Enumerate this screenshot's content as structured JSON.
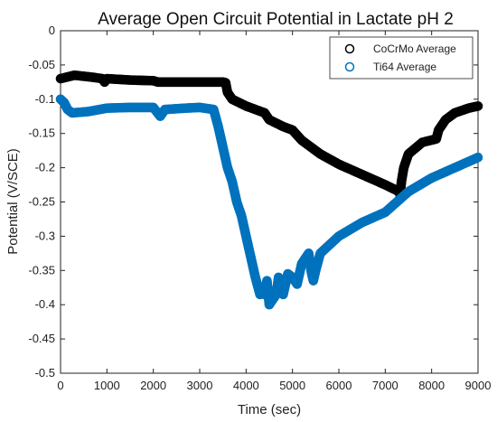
{
  "chart_data": {
    "type": "scatter",
    "title": "Average Open Circuit Potential in Lactate pH 2",
    "xlabel": "Time (sec)",
    "ylabel": "Potential (V/SCE)",
    "xlim": [
      0,
      9000
    ],
    "ylim": [
      -0.5,
      0
    ],
    "xticks": [
      0,
      1000,
      2000,
      3000,
      4000,
      5000,
      6000,
      7000,
      8000,
      9000
    ],
    "yticks": [
      0,
      -0.05,
      -0.1,
      -0.15,
      -0.2,
      -0.25,
      -0.3,
      -0.35,
      -0.4,
      -0.45,
      -0.5
    ],
    "xtick_labels": [
      "0",
      "1000",
      "2000",
      "3000",
      "4000",
      "5000",
      "6000",
      "7000",
      "8000",
      "9000"
    ],
    "ytick_labels": [
      "0",
      "-0.05",
      "-0.1",
      "-0.15",
      "-0.2",
      "-0.25",
      "-0.3",
      "-0.35",
      "-0.4",
      "-0.45",
      "-0.5"
    ],
    "grid": false,
    "legend_position": "top-right",
    "series": [
      {
        "name": "CoCrMo Average",
        "color": "#000000",
        "x": [
          0,
          300,
          700,
          900,
          950,
          1000,
          1500,
          2000,
          2100,
          2500,
          3000,
          3500,
          3560,
          3600,
          3700,
          4000,
          4400,
          4500,
          4800,
          5000,
          5200,
          5600,
          6000,
          6500,
          7000,
          7300,
          7320,
          7350,
          7400,
          7500,
          7800,
          8100,
          8150,
          8300,
          8500,
          8800,
          9000
        ],
        "y": [
          -0.07,
          -0.065,
          -0.068,
          -0.07,
          -0.075,
          -0.07,
          -0.072,
          -0.073,
          -0.075,
          -0.075,
          -0.075,
          -0.075,
          -0.076,
          -0.09,
          -0.1,
          -0.11,
          -0.12,
          -0.13,
          -0.14,
          -0.145,
          -0.16,
          -0.18,
          -0.195,
          -0.21,
          -0.225,
          -0.235,
          -0.24,
          -0.22,
          -0.2,
          -0.18,
          -0.163,
          -0.158,
          -0.145,
          -0.13,
          -0.12,
          -0.113,
          -0.11
        ]
      },
      {
        "name": "Ti64 Average",
        "color": "#0072bd",
        "x": [
          0,
          80,
          150,
          250,
          600,
          1000,
          1500,
          2000,
          2150,
          2250,
          2700,
          3000,
          3300,
          3400,
          3500,
          3600,
          3700,
          3800,
          3900,
          4000,
          4100,
          4200,
          4300,
          4350,
          4400,
          4450,
          4500,
          4650,
          4700,
          4800,
          4900,
          5000,
          5100,
          5200,
          5350,
          5400,
          5450,
          5500,
          5600,
          6000,
          6500,
          7000,
          7500,
          8000,
          8500,
          9000
        ],
        "y": [
          -0.1,
          -0.105,
          -0.115,
          -0.12,
          -0.118,
          -0.113,
          -0.112,
          -0.112,
          -0.125,
          -0.115,
          -0.113,
          -0.112,
          -0.115,
          -0.14,
          -0.17,
          -0.2,
          -0.22,
          -0.25,
          -0.27,
          -0.3,
          -0.33,
          -0.36,
          -0.385,
          -0.375,
          -0.385,
          -0.365,
          -0.4,
          -0.385,
          -0.36,
          -0.385,
          -0.355,
          -0.36,
          -0.37,
          -0.34,
          -0.325,
          -0.35,
          -0.365,
          -0.35,
          -0.325,
          -0.3,
          -0.28,
          -0.265,
          -0.235,
          -0.215,
          -0.2,
          -0.185
        ]
      }
    ]
  }
}
